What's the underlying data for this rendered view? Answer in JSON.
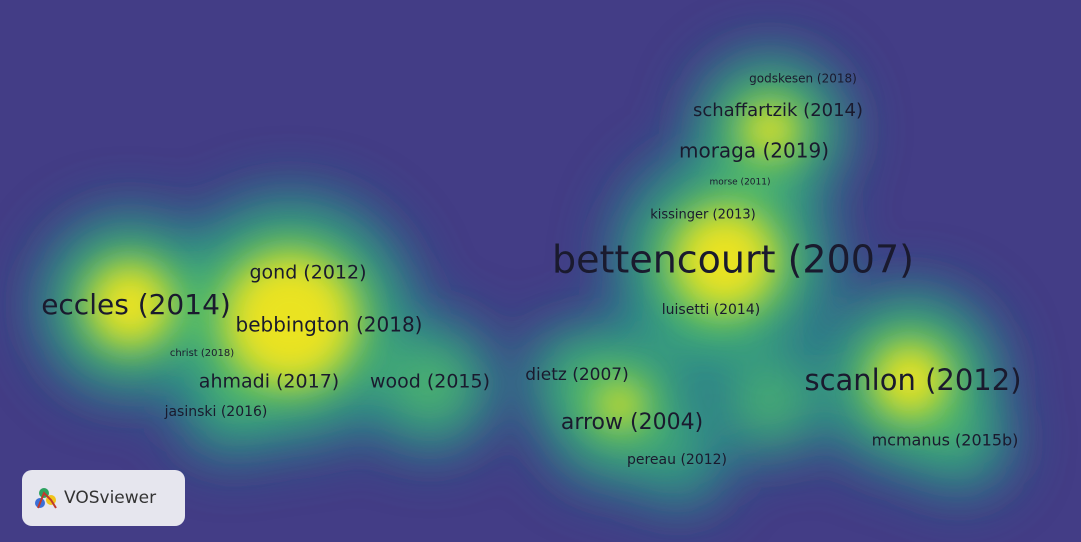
{
  "nodes": [
    {
      "label": "godskesen (2018)"
    },
    {
      "label": "schaffartzik (2014)"
    },
    {
      "label": "moraga (2019)"
    },
    {
      "label": "morse (2011)"
    },
    {
      "label": "kissinger (2013)"
    },
    {
      "label": "bettencourt (2007)"
    },
    {
      "label": "luisetti (2014)"
    },
    {
      "label": "gond (2012)"
    },
    {
      "label": "eccles (2014)"
    },
    {
      "label": "bebbington (2018)"
    },
    {
      "label": "christ (2018)"
    },
    {
      "label": "ahmadi (2017)"
    },
    {
      "label": "wood (2015)"
    },
    {
      "label": "jasinski (2016)"
    },
    {
      "label": "dietz (2007)"
    },
    {
      "label": "arrow (2004)"
    },
    {
      "label": "pereau (2012)"
    },
    {
      "label": "scanlon (2012)"
    },
    {
      "label": "mcmanus (2015b)"
    }
  ],
  "logo": {
    "text": "VOSviewer"
  }
}
